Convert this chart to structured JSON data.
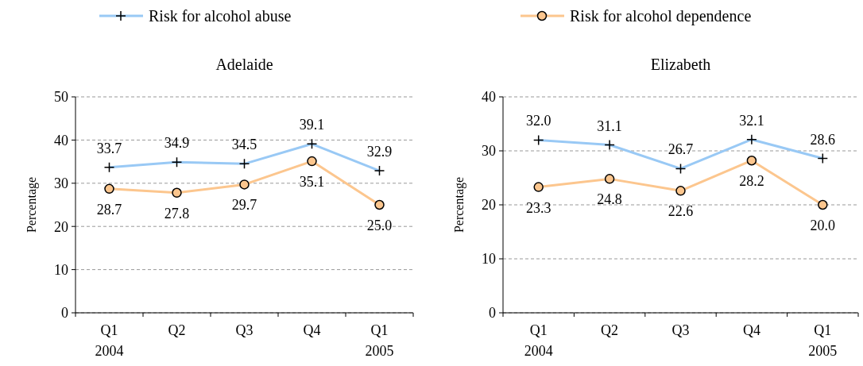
{
  "chart_data": [
    {
      "type": "line",
      "title": "Adelaide",
      "ylabel": "Percentage",
      "categories": [
        "Q1\n2004",
        "Q2",
        "Q3",
        "Q4",
        "Q1\n2005"
      ],
      "ylim": [
        0,
        50
      ],
      "yticks": [
        0,
        10,
        20,
        30,
        40,
        50
      ],
      "grid": "y",
      "legend": "top",
      "series": [
        {
          "name": "Risk for alcohol abuse",
          "color": "#99c9f5",
          "marker": "cross",
          "values": [
            33.7,
            34.9,
            34.5,
            39.1,
            32.9
          ],
          "value_labels": [
            "33.7",
            "34.9",
            "34.5",
            "39.1",
            "32.9"
          ]
        },
        {
          "name": "Risk for alcohol dependence",
          "color": "#fcc68e",
          "marker": "circle",
          "values": [
            28.7,
            27.8,
            29.7,
            35.1,
            25.0
          ],
          "value_labels": [
            "28.7",
            "27.8",
            "29.7",
            "35.1",
            "25.0"
          ]
        }
      ]
    },
    {
      "type": "line",
      "title": "Elizabeth",
      "ylabel": "Percentage",
      "categories": [
        "Q1\n2004",
        "Q2",
        "Q3",
        "Q4",
        "Q1\n2005"
      ],
      "ylim": [
        0,
        40
      ],
      "yticks": [
        0,
        10,
        20,
        30,
        40
      ],
      "grid": "y",
      "series": [
        {
          "color": "#99c9f5",
          "marker": "cross",
          "values": [
            32.0,
            31.1,
            26.7,
            32.1,
            28.6
          ],
          "value_labels": [
            "32.0",
            "31.1",
            "26.7",
            "32.1",
            "28.6"
          ]
        },
        {
          "color": "#fcc68e",
          "marker": "circle",
          "values": [
            23.3,
            24.8,
            22.6,
            28.2,
            20.0
          ],
          "value_labels": [
            "23.3",
            "24.8",
            "22.6",
            "28.2",
            "20.0"
          ]
        }
      ]
    }
  ]
}
